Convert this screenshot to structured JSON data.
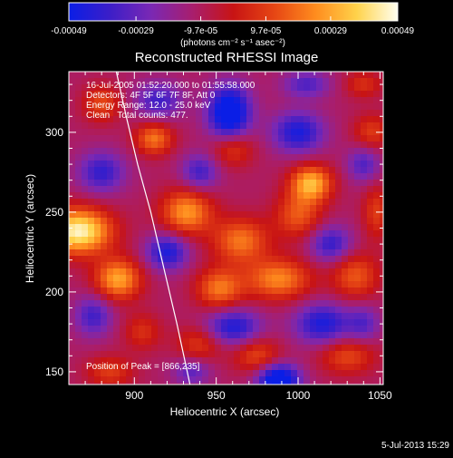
{
  "colorbar": {
    "stops": [
      "#0a1ee6",
      "#3c1ec8",
      "#7a28b4",
      "#a81e6e",
      "#c81414",
      "#e64614",
      "#ff8c1e",
      "#ffd24a",
      "#fffff0"
    ],
    "tick_labels": [
      "-0.00049",
      "-0.00029",
      "-9.7e-05",
      "9.7e-05",
      "0.00029",
      "0.00049"
    ],
    "unit_label": "(photons cm⁻² s⁻¹ asec⁻²)"
  },
  "title": "Reconstructed RHESSI Image",
  "info_lines": [
    "16-Jul-2005 01:52:20.000 to 01:55:58.000",
    "Detectors: 4F 5F 6F 7F 8F, Att 0",
    "Energy Range: 12.0 - 25.0 keV",
    "Clean   Total counts: 477."
  ],
  "peak_text": "Position of Peak = [866,235]",
  "footer_date": "5-Jul-2013 15:29",
  "chart_data": {
    "type": "heatmap",
    "title": "Reconstructed RHESSI Image",
    "xlabel": "Heliocentric X (arcsec)",
    "ylabel": "Heliocentric Y (arcsec)",
    "xlim": [
      860,
      1052
    ],
    "ylim": [
      142,
      338
    ],
    "xticks": [
      900,
      950,
      1000,
      1050
    ],
    "yticks": [
      150,
      200,
      250,
      300
    ],
    "colorbar_range": [
      -0.00049,
      0.00049
    ],
    "peak_position": [
      866,
      235
    ],
    "limb_curve": [
      [
        889,
        338
      ],
      [
        895,
        310
      ],
      [
        902,
        280
      ],
      [
        910,
        250
      ],
      [
        918,
        215
      ],
      [
        926,
        180
      ],
      [
        934,
        142
      ]
    ],
    "sources": [
      {
        "x": 866,
        "y": 238,
        "a": 1.0,
        "sx": 14,
        "sy": 10
      },
      {
        "x": 890,
        "y": 208,
        "a": 0.7,
        "sx": 10,
        "sy": 9
      },
      {
        "x": 912,
        "y": 296,
        "a": 0.55,
        "sx": 8,
        "sy": 7
      },
      {
        "x": 932,
        "y": 250,
        "a": 0.65,
        "sx": 11,
        "sy": 10
      },
      {
        "x": 965,
        "y": 232,
        "a": 0.55,
        "sx": 12,
        "sy": 10
      },
      {
        "x": 1000,
        "y": 248,
        "a": 0.45,
        "sx": 10,
        "sy": 10
      },
      {
        "x": 1008,
        "y": 268,
        "a": 0.75,
        "sx": 9,
        "sy": 8
      },
      {
        "x": 988,
        "y": 208,
        "a": 0.6,
        "sx": 14,
        "sy": 9
      },
      {
        "x": 952,
        "y": 202,
        "a": 0.55,
        "sx": 10,
        "sy": 9
      },
      {
        "x": 1035,
        "y": 210,
        "a": 0.45,
        "sx": 10,
        "sy": 10
      },
      {
        "x": 960,
        "y": 290,
        "a": 0.4,
        "sx": 9,
        "sy": 8
      },
      {
        "x": 1045,
        "y": 300,
        "a": 0.35,
        "sx": 8,
        "sy": 8
      },
      {
        "x": 1030,
        "y": 160,
        "a": 0.4,
        "sx": 12,
        "sy": 8
      },
      {
        "x": 885,
        "y": 150,
        "a": 0.35,
        "sx": 10,
        "sy": 7
      },
      {
        "x": 940,
        "y": 168,
        "a": 0.35,
        "sx": 10,
        "sy": 8
      },
      {
        "x": 905,
        "y": 175,
        "a": 0.3,
        "sx": 8,
        "sy": 8
      },
      {
        "x": 975,
        "y": 160,
        "a": 0.4,
        "sx": 10,
        "sy": 8
      },
      {
        "x": 1048,
        "y": 250,
        "a": 0.35,
        "sx": 6,
        "sy": 12
      },
      {
        "x": 880,
        "y": 318,
        "a": 0.4,
        "sx": 8,
        "sy": 8
      },
      {
        "x": 1040,
        "y": 330,
        "a": 0.3,
        "sx": 8,
        "sy": 6
      },
      {
        "x": 958,
        "y": 312,
        "a": -0.9,
        "sx": 9,
        "sy": 12
      },
      {
        "x": 988,
        "y": 145,
        "a": -0.9,
        "sx": 9,
        "sy": 7
      },
      {
        "x": 960,
        "y": 178,
        "a": -0.6,
        "sx": 12,
        "sy": 8
      },
      {
        "x": 920,
        "y": 225,
        "a": -0.6,
        "sx": 9,
        "sy": 8
      },
      {
        "x": 1020,
        "y": 230,
        "a": -0.5,
        "sx": 9,
        "sy": 8
      },
      {
        "x": 1015,
        "y": 180,
        "a": -0.6,
        "sx": 12,
        "sy": 9
      },
      {
        "x": 880,
        "y": 275,
        "a": -0.5,
        "sx": 10,
        "sy": 9
      },
      {
        "x": 875,
        "y": 185,
        "a": -0.45,
        "sx": 8,
        "sy": 9
      },
      {
        "x": 1000,
        "y": 300,
        "a": -0.6,
        "sx": 11,
        "sy": 9
      },
      {
        "x": 940,
        "y": 275,
        "a": -0.45,
        "sx": 8,
        "sy": 8
      },
      {
        "x": 1040,
        "y": 280,
        "a": -0.4,
        "sx": 7,
        "sy": 8
      },
      {
        "x": 1040,
        "y": 180,
        "a": -0.35,
        "sx": 7,
        "sy": 8
      },
      {
        "x": 915,
        "y": 320,
        "a": -0.45,
        "sx": 10,
        "sy": 8
      },
      {
        "x": 1005,
        "y": 330,
        "a": -0.4,
        "sx": 10,
        "sy": 6
      },
      {
        "x": 935,
        "y": 150,
        "a": -0.35,
        "sx": 8,
        "sy": 6
      }
    ]
  }
}
